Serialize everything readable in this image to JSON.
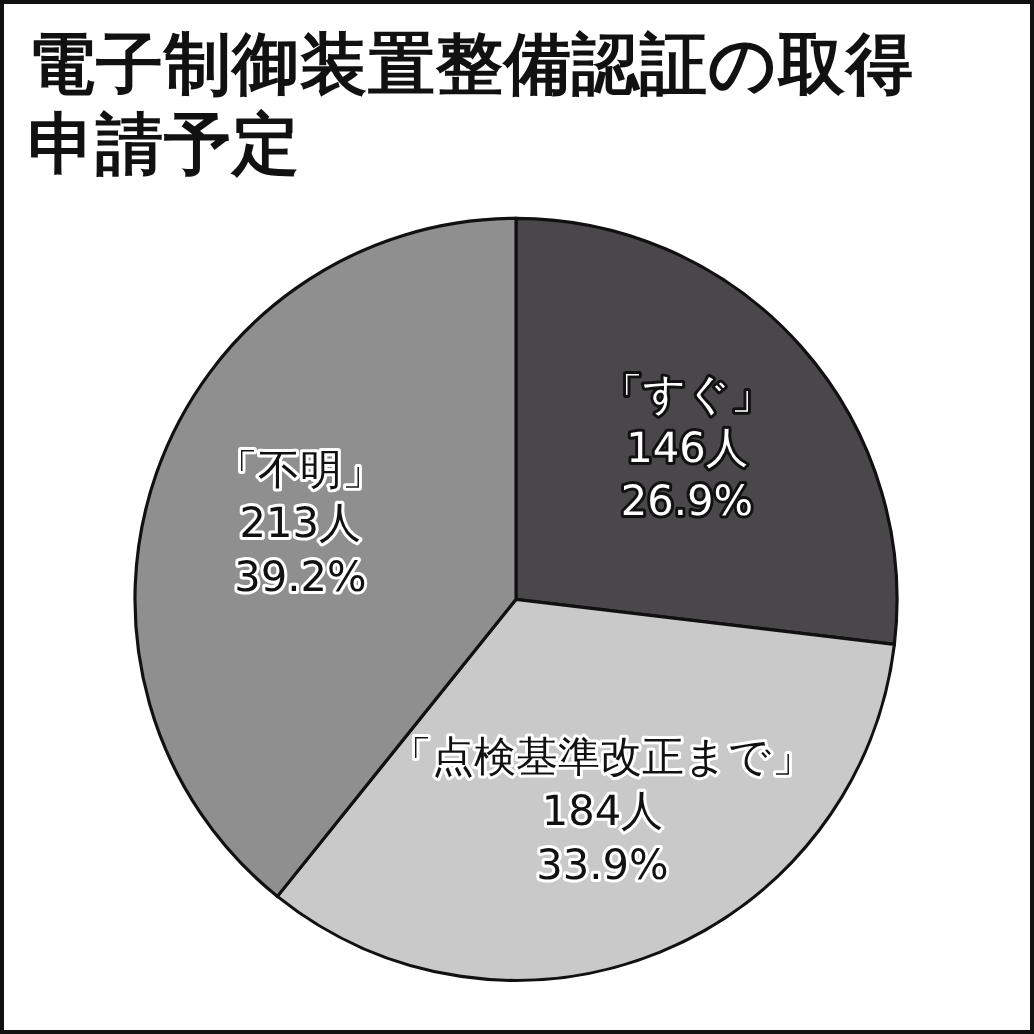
{
  "chart_data": {
    "type": "pie",
    "title": "電子制御装置整備認証の取得申請予定",
    "categories": [
      "「すぐ」",
      "「点検基準改正まで」",
      "「不明」"
    ],
    "values": [
      146,
      184,
      213
    ],
    "colors": [
      "#4a474a",
      "#c9c9c9",
      "#8f8f8f"
    ],
    "value_labels": [
      "146人\n26.9%",
      "184人\n33.9%",
      "213人\n39.2%"
    ]
  }
}
